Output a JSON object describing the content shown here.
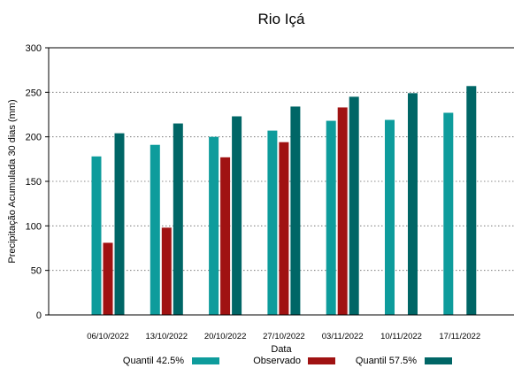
{
  "chart_data": {
    "type": "bar",
    "title": "Rio Içá",
    "xlabel": "Data",
    "ylabel": "Precipitação Acumulada 30 dias (mm)",
    "ylim": [
      0,
      300
    ],
    "yticks": [
      0,
      50,
      100,
      150,
      200,
      250,
      300
    ],
    "grid": true,
    "legend_position": "bottom",
    "categories": [
      "06/10/2022",
      "13/10/2022",
      "20/10/2022",
      "27/10/2022",
      "03/11/2022",
      "10/11/2022",
      "17/11/2022"
    ],
    "series": [
      {
        "name": "Quantil 42.5%",
        "color": "#0e9c9c",
        "values": [
          178,
          191,
          200,
          207,
          218,
          219,
          227
        ]
      },
      {
        "name": "Observado",
        "color": "#a01212",
        "values": [
          81,
          98,
          177,
          194,
          233,
          null,
          null
        ]
      },
      {
        "name": "Quantil 57.5%",
        "color": "#006666",
        "values": [
          204,
          215,
          223,
          234,
          245,
          249,
          257
        ]
      }
    ]
  }
}
